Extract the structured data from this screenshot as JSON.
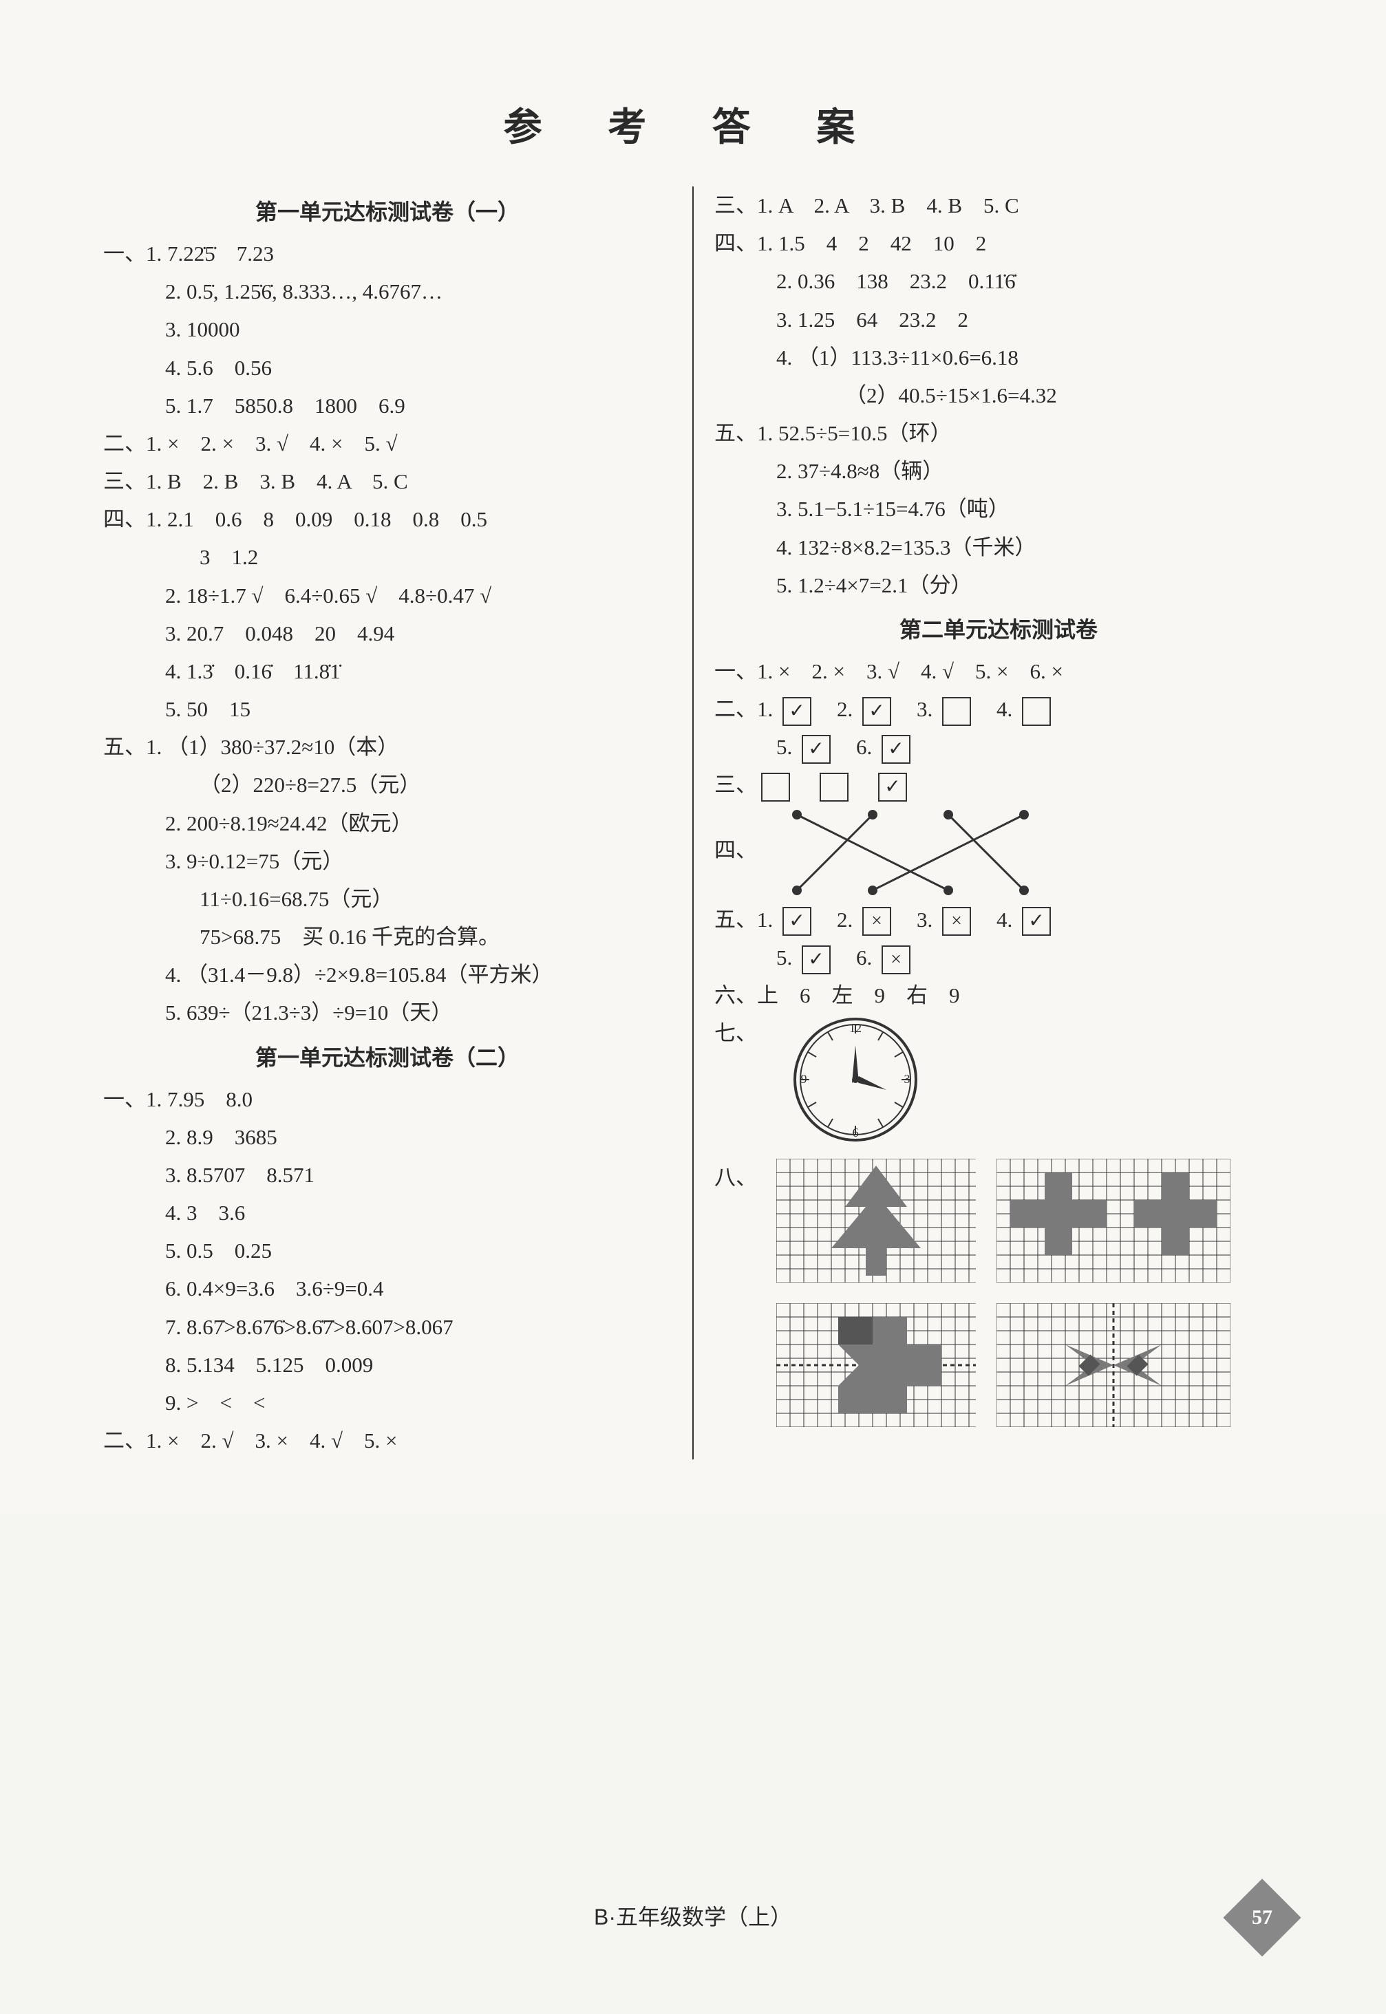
{
  "title": "参 考 答 案",
  "left": {
    "h1": "第一单元达标测试卷（一）",
    "s1": {
      "label": "一、",
      "l1": "1. 7.22̇5̇　7.23",
      "l2": "2. 0.5̇, 1.25̇6̇, 8.333…, 4.6767…",
      "l3": "3. 10000",
      "l4": "4. 5.6　0.56",
      "l5": "5. 1.7　5850.8　1800　6.9"
    },
    "s2": {
      "label": "二、",
      "l1": "1. ×　2. ×　3. √　4. ×　5. √"
    },
    "s3": {
      "label": "三、",
      "l1": "1. B　2. B　3. B　4. A　5. C"
    },
    "s4": {
      "label": "四、",
      "l1": "1. 2.1　0.6　8　0.09　0.18　0.8　0.5",
      "l1b": "3　1.2",
      "l2": "2. 18÷1.7 √　6.4÷0.65 √　4.8÷0.47 √",
      "l3": "3. 20.7　0.048　20　4.94",
      "l4": "4. 1.3̇　0.16̇　11.8̇1̇",
      "l5": "5. 50　15"
    },
    "s5": {
      "label": "五、",
      "l1a": "1. （1）380÷37.2≈10（本）",
      "l1b": "（2）220÷8=27.5（元）",
      "l2": "2. 200÷8.19≈24.42（欧元）",
      "l3a": "3. 9÷0.12=75（元）",
      "l3b": "11÷0.16=68.75（元）",
      "l3c": "75>68.75　买 0.16 千克的合算。",
      "l4": "4. （31.4－9.8）÷2×9.8=105.84（平方米）",
      "l5": "5. 639÷（21.3÷3）÷9=10（天）"
    },
    "h2": "第一单元达标测试卷（二）",
    "s6": {
      "label": "一、",
      "l1": "1. 7.95　8.0",
      "l2": "2. 8.9　3685",
      "l3": "3. 8.5707　8.571",
      "l4": "4. 3　3.6",
      "l5": "5. 0.5　0.25",
      "l6": "6. 0.4×9=3.6　3.6÷9=0.4",
      "l7": "7. 8.67̇>8.67̇6̇>8.6̇7̇>8.607>8.067",
      "l8": "8. 5.134　5.125　0.009",
      "l9": "9. >　<　<"
    },
    "s7": {
      "label": "二、",
      "l1": "1. ×　2. √　3. ×　4. √　5. ×"
    }
  },
  "right": {
    "r3": {
      "label": "三、",
      "l1": "1. A　2. A　3. B　4. B　5. C"
    },
    "r4": {
      "label": "四、",
      "l1": "1. 1.5　4　2　42　10　2",
      "l2": "2. 0.36　138　23.2　0.11̇6̇",
      "l3": "3. 1.25　64　23.2　2",
      "l4a": "4. （1）113.3÷11×0.6=6.18",
      "l4b": "（2）40.5÷15×1.6=4.32"
    },
    "r5": {
      "label": "五、",
      "l1": "1. 52.5÷5=10.5（环）",
      "l2": "2. 37÷4.8≈8（辆）",
      "l3": "3. 5.1−5.1÷15=4.76（吨）",
      "l4": "4. 132÷8×8.2=135.3（千米）",
      "l5": "5. 1.2÷4×7=2.1（分）"
    },
    "h3": "第二单元达标测试卷",
    "u1": {
      "label": "一、",
      "l1": "1. ×　2. ×　3. √　4. √　5. ×　6. ×"
    },
    "u2": {
      "label": "二、",
      "boxes": [
        "check",
        "check",
        "empty",
        "empty",
        "check",
        "check"
      ]
    },
    "u3": {
      "label": "三、",
      "boxes": [
        "empty",
        "empty",
        "check"
      ]
    },
    "u4": {
      "label": "四、"
    },
    "u5": {
      "label": "五、",
      "boxes": [
        "check",
        "x",
        "x",
        "check",
        "check",
        "x"
      ]
    },
    "u6": {
      "label": "六、",
      "l1": "上　6　左　9　右　9"
    },
    "u7": {
      "label": "七、"
    },
    "u8": {
      "label": "八、"
    }
  },
  "footer": "B·五年级数学（上）",
  "page_num": "57",
  "colors": {
    "text": "#2a2a2a",
    "grid_fill": "#7a7a7a",
    "grid_line": "#333",
    "bg": "#f8f7f4"
  }
}
